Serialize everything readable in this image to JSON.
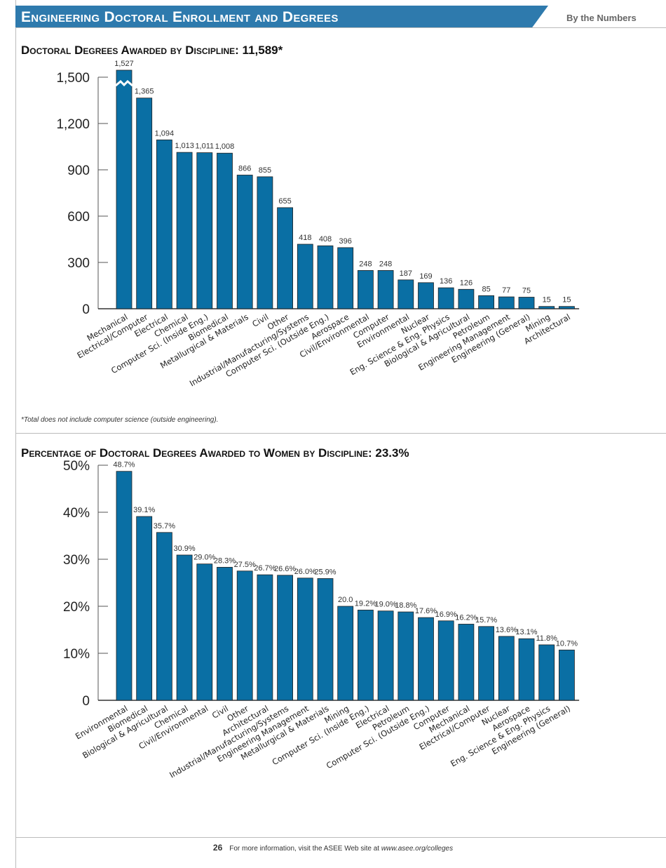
{
  "header": {
    "title": "Engineering Doctoral Enrollment and Degrees",
    "tagline": "By the Numbers",
    "accent": "#2e7aad"
  },
  "footnote": "*Total does not include computer science (outside engineering).",
  "footer": {
    "page": "26",
    "text": "For more information, visit the ASEE Web site at ",
    "url": "www.asee.org/colleges"
  },
  "bar_color": "#0a6fa4",
  "chart_data": [
    {
      "type": "bar",
      "title": "Doctoral Degrees Awarded by Discipline: 11,589*",
      "ylim": [
        0,
        1500
      ],
      "yticks": [
        "0",
        "300",
        "600",
        "900",
        "1,200",
        "1,500"
      ],
      "axis_break": "Mechanical",
      "categories": [
        "Mechanical",
        "Electrical/Computer",
        "Electrical",
        "Chemical",
        "Computer Sci. (Inside Eng.)",
        "Biomedical",
        "Metallurgical & Materials",
        "Civil",
        "Other",
        "Industrial/Manufacturing/Systems",
        "Computer Sci. (Outside Eng.)",
        "Aerospace",
        "Civil/Environmental",
        "Computer",
        "Environmental",
        "Nuclear",
        "Eng. Science & Eng. Physics",
        "Biological & Agricultural",
        "Petroleum",
        "Engineering Management",
        "Engineering (General)",
        "Mining",
        "Architectural"
      ],
      "values": [
        1527,
        1365,
        1094,
        1013,
        1011,
        1008,
        866,
        855,
        655,
        418,
        408,
        396,
        248,
        248,
        187,
        169,
        136,
        126,
        85,
        77,
        75,
        15,
        15
      ],
      "labels": [
        "1,527",
        "1,365",
        "1,094",
        "1,013",
        "1,011",
        "1,008",
        "866",
        "855",
        "655",
        "418",
        "408",
        "396",
        "248",
        "248",
        "187",
        "169",
        "136",
        "126",
        "85",
        "77",
        "75",
        "15",
        "15"
      ]
    },
    {
      "type": "bar",
      "title": "Percentage of Doctoral Degrees Awarded to Women by Discipline: 23.3%",
      "ylim": [
        0,
        50
      ],
      "yticks": [
        "0",
        "10%",
        "20%",
        "30%",
        "40%",
        "50%"
      ],
      "categories": [
        "Environmental",
        "Biomedical",
        "Biological & Agricultural",
        "Chemical",
        "Civil/Environmental",
        "Civil",
        "Other",
        "Architectural",
        "Industrial/Manufacturing/Systems",
        "Engineering Management",
        "Metallurgical & Materials",
        "Mining",
        "Computer Sci. (Inside Eng.)",
        "Electrical",
        "Petroleum",
        "Computer Sci. (Outside Eng.)",
        "Computer",
        "Mechanical",
        "Electrical/Computer",
        "Nuclear",
        "Aerospace",
        "Eng. Science & Eng. Physics",
        "Engineering (General)"
      ],
      "values": [
        48.7,
        39.1,
        35.7,
        30.9,
        29.0,
        28.3,
        27.5,
        26.7,
        26.6,
        26.0,
        25.9,
        20.0,
        19.2,
        19.0,
        18.8,
        17.6,
        16.9,
        16.2,
        15.7,
        13.6,
        13.1,
        11.8,
        10.7
      ],
      "labels": [
        "48.7%",
        "39.1%",
        "35.7%",
        "30.9%",
        "29.0%",
        "28.3%",
        "27.5%",
        "26.7%",
        "26.6%",
        "26.0%",
        "25.9%",
        "20.0",
        "19.2%",
        "19.0%",
        "18.8%",
        "17.6%",
        "16.9%",
        "16.2%",
        "15.7%",
        "13.6%",
        "13.1%",
        "11.8%",
        "10.7%"
      ]
    }
  ]
}
